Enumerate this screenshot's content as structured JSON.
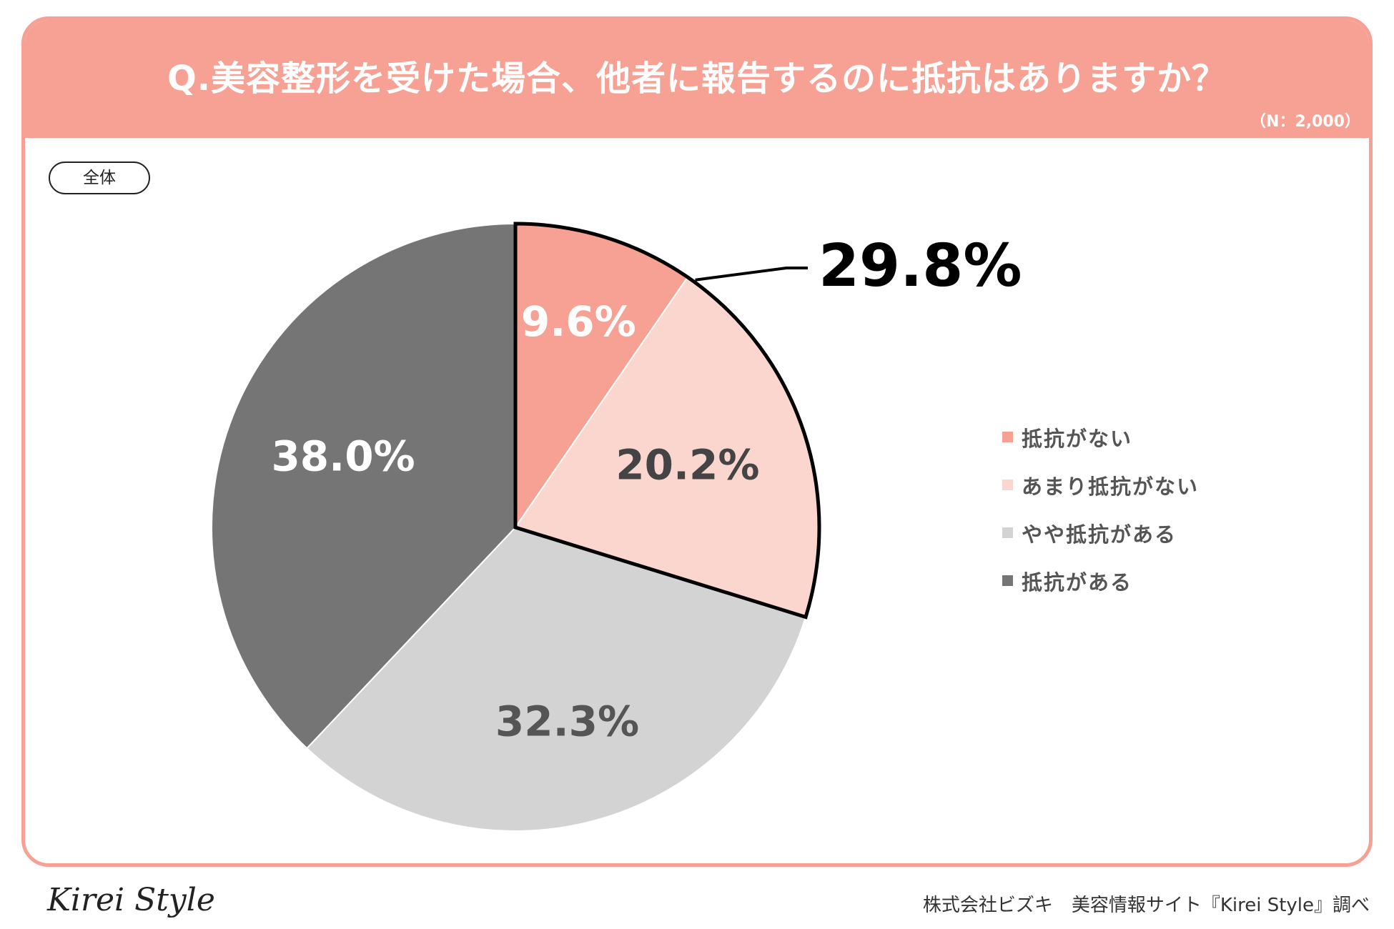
{
  "header": {
    "title": "Q.美容整形を受けた場合、他者に報告するのに抵抗はありますか？",
    "sample": "（N：2,000）"
  },
  "group_label": "全体",
  "chart_data": {
    "type": "pie",
    "title": "Q.美容整形を受けた場合、他者に報告するのに抵抗はありますか？",
    "categories": [
      "抵抗がない",
      "あまり抵抗がない",
      "やや抵抗がある",
      "抵抗がある"
    ],
    "values": [
      9.6,
      20.2,
      32.3,
      38.0
    ],
    "labels": [
      "9.6%",
      "20.2%",
      "32.3%",
      "38.0%"
    ],
    "colors": [
      "#f6a193",
      "#fbd6cf",
      "#d3d3d3",
      "#757575"
    ],
    "label_colors": [
      "#ffffff",
      "#444444",
      "#555555",
      "#ffffff"
    ],
    "legend_position": "right",
    "highlight": {
      "categories": [
        "抵抗がない",
        "あまり抵抗がない"
      ],
      "total_label": "29.8%"
    }
  },
  "footer": {
    "logo": "Kirei Style",
    "credit": "株式会社ビズキ　美容情報サイト『Kirei Style』調べ"
  }
}
